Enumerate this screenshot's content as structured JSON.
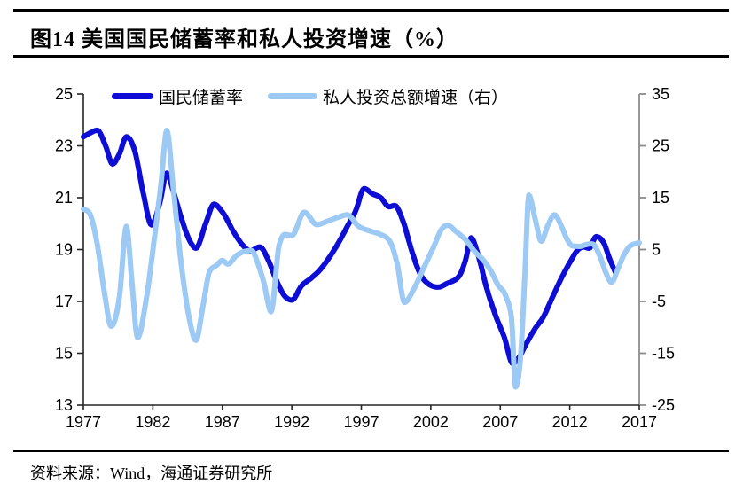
{
  "title": "图14 美国国民储蓄率和私人投资增速（%）",
  "source_note": "资料来源：Wind，海通证券研究所",
  "legend": {
    "items": [
      {
        "label": "国民储蓄率",
        "color": "#0D0DD6"
      },
      {
        "label": "私人投资总额增速（右）",
        "color": "#9DC9F5"
      }
    ]
  },
  "colors": {
    "series_dark": "#0D0DD6",
    "series_light": "#9DC9F5",
    "axis_left": "#262626",
    "axis_bottom": "#262626",
    "axis_right": "#8C8C8C",
    "text": "#000000",
    "rule": "#000000",
    "background": "#FFFFFF"
  },
  "chart_data": {
    "type": "line",
    "title": "图14 美国国民储蓄率和私人投资增速（%）",
    "grid": false,
    "legend_position": "top",
    "x_axis": {
      "ticks": [
        1977,
        1982,
        1987,
        1992,
        1997,
        2002,
        2007,
        2012,
        2017
      ],
      "range": [
        1977,
        2017
      ]
    },
    "y_axis_left": {
      "ticks": [
        25,
        23,
        21,
        19,
        17,
        15,
        13
      ],
      "range": [
        13,
        25
      ]
    },
    "y_axis_right": {
      "ticks": [
        35,
        25,
        15,
        5,
        -5,
        -15,
        -25
      ],
      "range": [
        -25,
        35
      ]
    },
    "series": [
      {
        "name": "国民储蓄率",
        "axis": "left",
        "color": "#0D0DD6",
        "points": [
          [
            1977.0,
            23.35
          ],
          [
            1977.5,
            23.5
          ],
          [
            1978.0,
            23.6
          ],
          [
            1978.6,
            23.0
          ],
          [
            1979.1,
            22.3
          ],
          [
            1979.6,
            22.7
          ],
          [
            1980.1,
            23.35
          ],
          [
            1980.7,
            22.8
          ],
          [
            1981.3,
            21.2
          ],
          [
            1981.9,
            19.95
          ],
          [
            1982.5,
            20.8
          ],
          [
            1983.0,
            21.95
          ],
          [
            1983.5,
            21.2
          ],
          [
            1984.0,
            20.3
          ],
          [
            1984.6,
            19.4
          ],
          [
            1985.1,
            19.05
          ],
          [
            1985.8,
            20.0
          ],
          [
            1986.4,
            20.75
          ],
          [
            1987.0,
            20.45
          ],
          [
            1987.9,
            19.6
          ],
          [
            1988.5,
            19.15
          ],
          [
            1989.0,
            18.95
          ],
          [
            1989.7,
            19.1
          ],
          [
            1990.3,
            18.6
          ],
          [
            1990.9,
            17.8
          ],
          [
            1991.5,
            17.2
          ],
          [
            1992.0,
            17.05
          ],
          [
            1992.7,
            17.6
          ],
          [
            1993.4,
            17.9
          ],
          [
            1994.0,
            18.2
          ],
          [
            1994.7,
            18.7
          ],
          [
            1995.4,
            19.3
          ],
          [
            1996.0,
            19.9
          ],
          [
            1996.6,
            20.5
          ],
          [
            1997.2,
            21.35
          ],
          [
            1997.8,
            21.15
          ],
          [
            1998.4,
            21.0
          ],
          [
            1999.0,
            20.65
          ],
          [
            1999.4,
            20.7
          ],
          [
            2000.0,
            20.1
          ],
          [
            2000.6,
            19.0
          ],
          [
            2001.2,
            18.1
          ],
          [
            2001.9,
            17.65
          ],
          [
            2002.5,
            17.55
          ],
          [
            2003.2,
            17.7
          ],
          [
            2004.0,
            17.95
          ],
          [
            2004.5,
            18.6
          ],
          [
            2004.9,
            19.45
          ],
          [
            2005.4,
            18.8
          ],
          [
            2006.0,
            17.55
          ],
          [
            2006.7,
            16.4
          ],
          [
            2007.3,
            15.6
          ],
          [
            2007.9,
            14.6
          ],
          [
            2008.3,
            14.8
          ],
          [
            2008.9,
            15.4
          ],
          [
            2009.5,
            15.95
          ],
          [
            2010.1,
            16.4
          ],
          [
            2010.7,
            17.1
          ],
          [
            2011.4,
            17.9
          ],
          [
            2012.0,
            18.5
          ],
          [
            2012.6,
            19.0
          ],
          [
            2013.0,
            19.1
          ],
          [
            2013.4,
            19.05
          ],
          [
            2013.9,
            19.5
          ],
          [
            2014.4,
            19.3
          ],
          [
            2014.9,
            18.6
          ],
          [
            2015.3,
            18.1
          ]
        ]
      },
      {
        "name": "私人投资总额增速（右）",
        "axis": "right",
        "color": "#9DC9F5",
        "points": [
          [
            1977.0,
            12.8
          ],
          [
            1977.4,
            12.2
          ],
          [
            1978.0,
            6.0
          ],
          [
            1978.5,
            -3.0
          ],
          [
            1979.0,
            -9.8
          ],
          [
            1979.6,
            -4.0
          ],
          [
            1980.1,
            9.5
          ],
          [
            1980.5,
            -1.5
          ],
          [
            1980.9,
            -12.0
          ],
          [
            1981.5,
            -5.0
          ],
          [
            1982.1,
            7.0
          ],
          [
            1982.6,
            18.0
          ],
          [
            1983.0,
            28.0
          ],
          [
            1983.5,
            16.0
          ],
          [
            1984.1,
            1.0
          ],
          [
            1984.6,
            -8.0
          ],
          [
            1985.1,
            -12.5
          ],
          [
            1985.6,
            -6.0
          ],
          [
            1986.1,
            0.9
          ],
          [
            1986.6,
            2.0
          ],
          [
            1987.0,
            2.9
          ],
          [
            1987.4,
            2.2
          ],
          [
            1988.0,
            3.8
          ],
          [
            1988.7,
            4.7
          ],
          [
            1989.1,
            4.8
          ],
          [
            1989.6,
            2.0
          ],
          [
            1990.0,
            -1.5
          ],
          [
            1990.5,
            -7.0
          ],
          [
            1991.1,
            6.0
          ],
          [
            1991.5,
            7.9
          ],
          [
            1992.0,
            7.7
          ],
          [
            1992.9,
            12.2
          ],
          [
            1993.8,
            9.8
          ],
          [
            1994.5,
            10.4
          ],
          [
            1995.3,
            11.2
          ],
          [
            1996.0,
            11.7
          ],
          [
            1996.8,
            9.5
          ],
          [
            1997.6,
            8.6
          ],
          [
            1998.3,
            8.0
          ],
          [
            1999.0,
            6.8
          ],
          [
            1999.6,
            2.0
          ],
          [
            2000.1,
            -5.2
          ],
          [
            2000.8,
            -2.5
          ],
          [
            2001.5,
            1.5
          ],
          [
            2002.2,
            5.5
          ],
          [
            2002.8,
            9.0
          ],
          [
            2003.2,
            9.7
          ],
          [
            2003.8,
            8.5
          ],
          [
            2004.5,
            6.9
          ],
          [
            2005.2,
            4.5
          ],
          [
            2005.8,
            2.9
          ],
          [
            2006.4,
            0.5
          ],
          [
            2006.8,
            -1.7
          ],
          [
            2007.4,
            -4.0
          ],
          [
            2007.8,
            -8.0
          ],
          [
            2008.1,
            -21.5
          ],
          [
            2008.45,
            -16.0
          ],
          [
            2008.8,
            2.0
          ],
          [
            2009.05,
            15.5
          ],
          [
            2009.5,
            11.0
          ],
          [
            2009.95,
            6.6
          ],
          [
            2010.4,
            9.5
          ],
          [
            2010.9,
            11.7
          ],
          [
            2011.4,
            9.5
          ],
          [
            2011.8,
            7.0
          ],
          [
            2012.2,
            5.7
          ],
          [
            2012.7,
            5.6
          ],
          [
            2013.1,
            5.9
          ],
          [
            2013.6,
            6.1
          ],
          [
            2014.2,
            3.5
          ],
          [
            2014.6,
            0.5
          ],
          [
            2015.0,
            -1.3
          ],
          [
            2015.5,
            1.5
          ],
          [
            2015.9,
            4.0
          ],
          [
            2016.4,
            5.8
          ],
          [
            2017.0,
            6.3
          ]
        ]
      }
    ]
  }
}
